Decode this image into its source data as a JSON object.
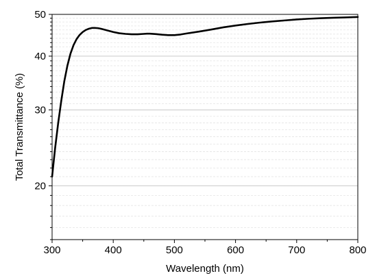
{
  "chart_data": {
    "type": "line",
    "xlabel": "Wavelength (nm)",
    "ylabel": "Total Transmittance (%)",
    "xlim": [
      300,
      800
    ],
    "ylim": [
      15,
      50
    ],
    "y_scale": "log",
    "x_ticks": [
      300,
      400,
      500,
      600,
      700,
      800
    ],
    "y_major_ticks": [
      20,
      30,
      40,
      50
    ],
    "y_minor_gridlines": true,
    "grid": "horizontal",
    "line_color": "#000000",
    "series": [
      {
        "x": [
          300,
          305,
          310,
          315,
          320,
          325,
          330,
          335,
          340,
          345,
          350,
          355,
          360,
          365,
          370,
          375,
          380,
          390,
          400,
          410,
          420,
          430,
          440,
          450,
          455,
          460,
          470,
          480,
          490,
          500,
          510,
          520,
          540,
          560,
          580,
          600,
          620,
          640,
          660,
          680,
          700,
          720,
          740,
          760,
          780,
          800
        ],
        "y": [
          21.0,
          24.5,
          28.0,
          31.5,
          35.0,
          38.0,
          40.5,
          42.4,
          43.8,
          44.8,
          45.5,
          46.0,
          46.3,
          46.5,
          46.5,
          46.45,
          46.3,
          45.9,
          45.5,
          45.2,
          45.05,
          44.95,
          44.95,
          45.05,
          45.1,
          45.1,
          45.0,
          44.85,
          44.75,
          44.75,
          44.9,
          45.15,
          45.6,
          46.1,
          46.65,
          47.1,
          47.5,
          47.85,
          48.15,
          48.4,
          48.65,
          48.85,
          49.0,
          49.1,
          49.2,
          49.3
        ]
      }
    ]
  }
}
